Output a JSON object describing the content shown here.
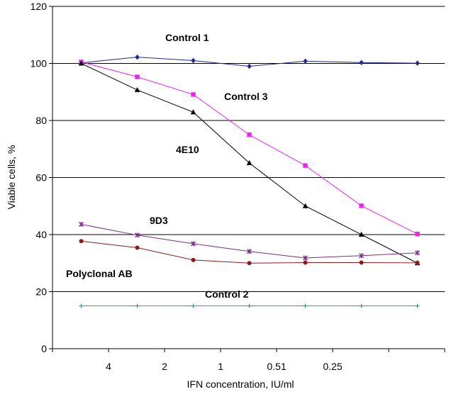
{
  "chart_data": {
    "type": "line",
    "title": "",
    "xlabel": "IFN concentration, IU/ml",
    "ylabel": "Viable cells, %",
    "ylim": [
      0,
      120
    ],
    "yticks": [
      0,
      20,
      40,
      60,
      80,
      100,
      120
    ],
    "grid": "horizontal",
    "legend": "none",
    "x_categories": [
      "",
      "",
      "",
      "",
      "",
      "",
      ""
    ],
    "x_tick_labels": [
      "4",
      "2",
      "1",
      "0.51",
      "0.25",
      ""
    ],
    "series": [
      {
        "name": "Control 1",
        "color": "#1f2a8a",
        "marker": "diamond",
        "values": [
          100.2,
          102.2,
          101.0,
          99.0,
          100.8,
          100.3,
          100.1
        ]
      },
      {
        "name": "Control 3",
        "color": "#ee22ee",
        "marker": "square",
        "values": [
          100.5,
          95.3,
          89.1,
          75.0,
          64.2,
          50.1,
          40.2
        ]
      },
      {
        "name": "4E10",
        "color": "#000000",
        "marker": "triangle",
        "values": [
          100.0,
          90.7,
          82.9,
          65.1,
          50.0,
          40.0,
          30.0
        ]
      },
      {
        "name": "9D3",
        "color": "#7a2a8a",
        "marker": "star",
        "values": [
          43.6,
          39.8,
          36.8,
          34.1,
          31.8,
          32.6,
          33.6
        ]
      },
      {
        "name": "Polyclonal AB",
        "color": "#8b1a1a",
        "marker": "circle",
        "values": [
          37.7,
          35.4,
          31.1,
          30.0,
          30.2,
          30.2,
          30.1
        ]
      },
      {
        "name": "Control 2",
        "color": "#2a9a9a",
        "marker": "plus",
        "values": [
          15.0,
          15.0,
          15.0,
          15.0,
          15.0,
          15.0,
          15.0
        ]
      }
    ]
  }
}
